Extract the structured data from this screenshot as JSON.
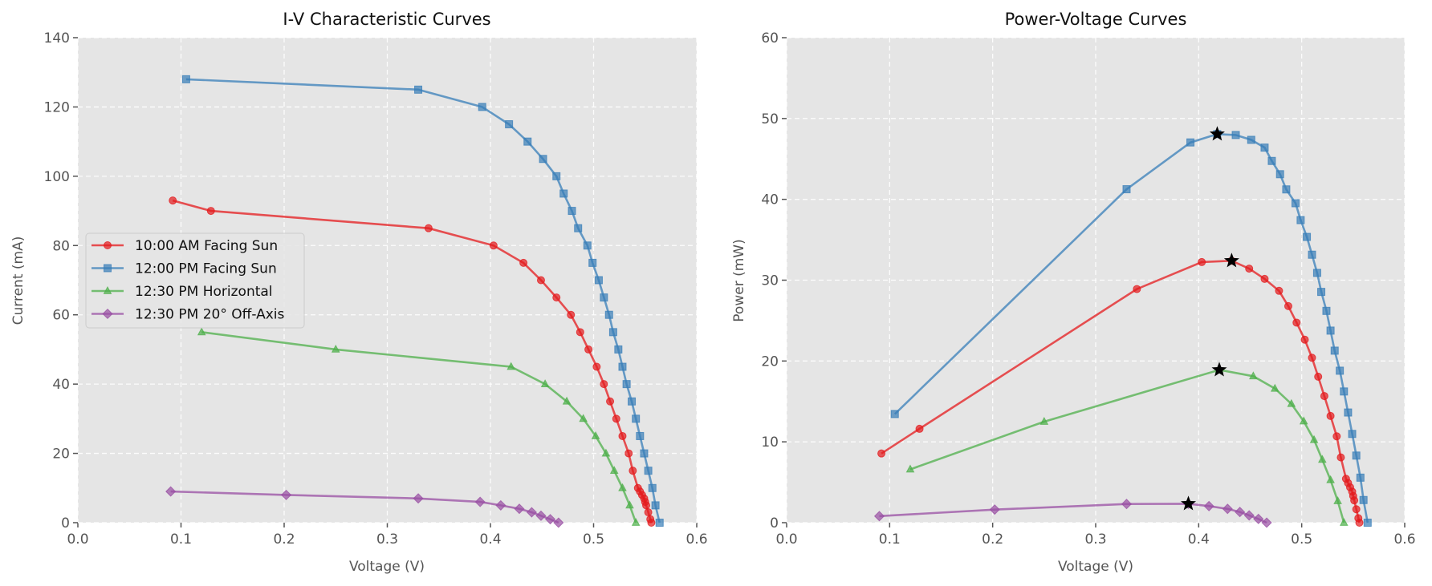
{
  "chart_data": [
    {
      "type": "line",
      "title": "I-V Characteristic Curves",
      "xlabel": "Voltage (V)",
      "ylabel": "Current (mA)",
      "xlim": [
        0,
        0.6
      ],
      "ylim": [
        0,
        140
      ],
      "xticks": [
        "0.0",
        "0.1",
        "0.2",
        "0.3",
        "0.4",
        "0.5",
        "0.6"
      ],
      "yticks": [
        "0",
        "20",
        "40",
        "60",
        "80",
        "100",
        "120",
        "140"
      ],
      "grid": true,
      "legend_position": "center-left",
      "series": [
        {
          "name": "10:00 AM Facing Sun",
          "color": "#e41a1c",
          "marker": "circle",
          "x": [
            0.092,
            0.129,
            0.34,
            0.403,
            0.432,
            0.449,
            0.464,
            0.478,
            0.487,
            0.495,
            0.503,
            0.51,
            0.516,
            0.522,
            0.528,
            0.534,
            0.538,
            0.543,
            0.545,
            0.547,
            0.549,
            0.55,
            0.551,
            0.553,
            0.555,
            0.556
          ],
          "y": [
            93,
            90,
            85,
            80,
            75,
            70,
            65,
            60,
            55,
            50,
            45,
            40,
            35,
            30,
            25,
            20,
            15,
            10,
            9,
            8,
            7,
            6,
            5,
            3,
            1,
            0
          ]
        },
        {
          "name": "12:00 PM Facing Sun",
          "color": "#377eb8",
          "marker": "square",
          "x": [
            0.105,
            0.33,
            0.392,
            0.418,
            0.436,
            0.451,
            0.464,
            0.471,
            0.479,
            0.485,
            0.494,
            0.499,
            0.505,
            0.51,
            0.515,
            0.519,
            0.524,
            0.528,
            0.532,
            0.537,
            0.541,
            0.545,
            0.549,
            0.553,
            0.557,
            0.56,
            0.564
          ],
          "y": [
            128,
            125,
            120,
            115,
            110,
            105,
            100,
            95,
            90,
            85,
            80,
            75,
            70,
            65,
            60,
            55,
            50,
            45,
            40,
            35,
            30,
            25,
            20,
            15,
            10,
            5,
            0
          ]
        },
        {
          "name": "12:30 PM Horizontal",
          "color": "#4daf4a",
          "marker": "triangle",
          "x": [
            0.12,
            0.25,
            0.42,
            0.453,
            0.474,
            0.49,
            0.502,
            0.512,
            0.52,
            0.528,
            0.535,
            0.541
          ],
          "y": [
            55,
            50,
            45,
            40,
            35,
            30,
            25,
            20,
            15,
            10,
            5,
            0
          ]
        },
        {
          "name": "12:30 PM 20° Off-Axis",
          "color": "#984ea3",
          "marker": "diamond",
          "x": [
            0.09,
            0.202,
            0.33,
            0.39,
            0.41,
            0.428,
            0.44,
            0.449,
            0.458,
            0.466
          ],
          "y": [
            9,
            8,
            7,
            6,
            5,
            4,
            3,
            2,
            1,
            0
          ]
        }
      ]
    },
    {
      "type": "line",
      "title": "Power-Voltage Curves",
      "xlabel": "Voltage (V)",
      "ylabel": "Power (mW)",
      "xlim": [
        0,
        0.6
      ],
      "ylim": [
        0,
        60
      ],
      "xticks": [
        "0.0",
        "0.1",
        "0.2",
        "0.3",
        "0.4",
        "0.5",
        "0.6"
      ],
      "yticks": [
        "0",
        "10",
        "20",
        "30",
        "40",
        "50",
        "60"
      ],
      "grid": true,
      "series": [
        {
          "color": "#e41a1c",
          "marker": "circle",
          "x": [
            0.092,
            0.129,
            0.34,
            0.403,
            0.432,
            0.449,
            0.464,
            0.478,
            0.487,
            0.495,
            0.503,
            0.51,
            0.516,
            0.522,
            0.528,
            0.534,
            0.538,
            0.543,
            0.545,
            0.547,
            0.549,
            0.55,
            0.551,
            0.553,
            0.555,
            0.556
          ],
          "y": [
            8.56,
            11.61,
            28.9,
            32.24,
            32.4,
            31.43,
            30.16,
            28.68,
            26.79,
            24.75,
            22.64,
            20.4,
            18.06,
            15.66,
            13.2,
            10.68,
            8.07,
            5.43,
            4.91,
            4.38,
            3.84,
            3.3,
            2.76,
            1.66,
            0.56,
            0
          ]
        },
        {
          "color": "#377eb8",
          "marker": "square",
          "x": [
            0.105,
            0.33,
            0.392,
            0.418,
            0.436,
            0.451,
            0.464,
            0.471,
            0.479,
            0.485,
            0.494,
            0.499,
            0.505,
            0.51,
            0.515,
            0.519,
            0.524,
            0.528,
            0.532,
            0.537,
            0.541,
            0.545,
            0.549,
            0.553,
            0.557,
            0.56,
            0.564
          ],
          "y": [
            13.44,
            41.25,
            47.04,
            48.07,
            47.96,
            47.36,
            46.4,
            44.75,
            43.11,
            41.23,
            39.52,
            37.43,
            35.35,
            33.15,
            30.9,
            28.55,
            26.2,
            23.76,
            21.28,
            18.8,
            16.23,
            13.63,
            10.98,
            8.3,
            5.57,
            2.8,
            0
          ]
        },
        {
          "color": "#4daf4a",
          "marker": "triangle",
          "x": [
            0.12,
            0.25,
            0.42,
            0.453,
            0.474,
            0.49,
            0.502,
            0.512,
            0.52,
            0.528,
            0.535,
            0.541
          ],
          "y": [
            6.6,
            12.5,
            18.9,
            18.12,
            16.59,
            14.7,
            12.55,
            10.24,
            7.8,
            5.28,
            2.68,
            0
          ]
        },
        {
          "color": "#984ea3",
          "marker": "diamond",
          "x": [
            0.09,
            0.202,
            0.33,
            0.39,
            0.41,
            0.428,
            0.44,
            0.449,
            0.458,
            0.466
          ],
          "y": [
            0.81,
            1.62,
            2.31,
            2.34,
            2.05,
            1.71,
            1.32,
            0.9,
            0.46,
            0
          ]
        }
      ],
      "max_power_points": {
        "marker": "star",
        "color": "#000000",
        "x": [
          0.432,
          0.418,
          0.42,
          0.39
        ],
        "y": [
          32.4,
          48.07,
          18.9,
          2.34
        ]
      }
    }
  ]
}
